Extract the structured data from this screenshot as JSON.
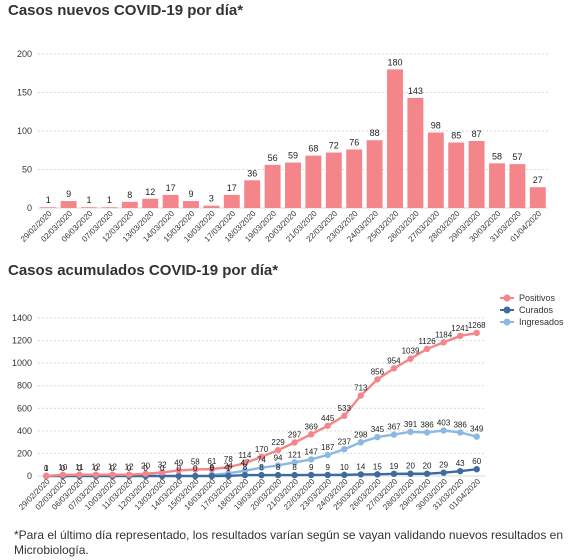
{
  "chart_data": [
    {
      "type": "bar",
      "title": "Casos nuevos COVID-19 por día*",
      "xlabel": "",
      "ylabel": "",
      "ylim": [
        0,
        200
      ],
      "yticks": [
        0,
        50,
        100,
        150,
        200
      ],
      "grid": true,
      "color": "#f4858a",
      "categories": [
        "29/02/2020",
        "02/03/2020",
        "06/03/2020",
        "07/03/2020",
        "12/03/2020",
        "13/03/2020",
        "14/03/2020",
        "15/03/2020",
        "16/03/2020",
        "17/03/2020",
        "18/03/2020",
        "19/03/2020",
        "20/03/2020",
        "21/03/2020",
        "22/03/2020",
        "23/03/2020",
        "24/03/2020",
        "25/03/2020",
        "26/03/2020",
        "27/03/2020",
        "28/03/2020",
        "29/03/2020",
        "30/03/2020",
        "31/03/2020",
        "01/04/2020"
      ],
      "values": [
        1,
        9,
        1,
        1,
        8,
        12,
        17,
        9,
        3,
        17,
        36,
        56,
        59,
        68,
        72,
        76,
        88,
        180,
        143,
        98,
        85,
        87,
        58,
        57,
        27
      ]
    },
    {
      "type": "line",
      "title": "Casos acumulados COVID-19 por día*",
      "xlabel": "",
      "ylabel": "",
      "ylim": [
        0,
        1400
      ],
      "yticks": [
        0,
        200,
        400,
        600,
        800,
        1000,
        1200,
        1400
      ],
      "grid": true,
      "legend": "top-right",
      "categories": [
        "29/02/2020",
        "02/03/2020",
        "06/03/2020",
        "07/03/2020",
        "10/03/2020",
        "11/03/2020",
        "12/03/2020",
        "13/03/2020",
        "14/03/2020",
        "15/03/2020",
        "16/03/2020",
        "17/03/2020",
        "18/03/2020",
        "19/03/2020",
        "20/03/2020",
        "21/03/2020",
        "22/03/2020",
        "23/03/2020",
        "24/03/2020",
        "25/03/2020",
        "26/03/2020",
        "27/03/2020",
        "28/03/2020",
        "29/03/2020",
        "30/03/2020",
        "31/03/2020",
        "01/04/2020"
      ],
      "series": [
        {
          "name": "Positivos",
          "color": "#f4858a",
          "values": [
            1,
            10,
            11,
            12,
            12,
            12,
            20,
            32,
            49,
            58,
            61,
            78,
            114,
            170,
            229,
            297,
            369,
            445,
            533,
            713,
            856,
            954,
            1039,
            1126,
            1184,
            1241,
            1268
          ]
        },
        {
          "name": "Curados",
          "color": "#3d6b9e",
          "values": [
            0,
            0,
            0,
            0,
            0,
            0,
            0,
            0,
            0,
            0,
            0,
            1,
            8,
            8,
            8,
            8,
            9,
            9,
            10,
            14,
            15,
            19,
            20,
            20,
            29,
            43,
            60
          ]
        },
        {
          "name": "Ingresados",
          "color": "#8db8e3",
          "values": [
            null,
            null,
            null,
            null,
            null,
            null,
            null,
            null,
            null,
            null,
            9,
            24,
            47,
            74,
            94,
            121,
            147,
            187,
            237,
            298,
            345,
            367,
            391,
            386,
            403,
            386,
            349
          ]
        }
      ]
    }
  ],
  "footnote": "*Para el último día representado, los resultados varían según se vayan validando nuevos resultados en Microbiología."
}
